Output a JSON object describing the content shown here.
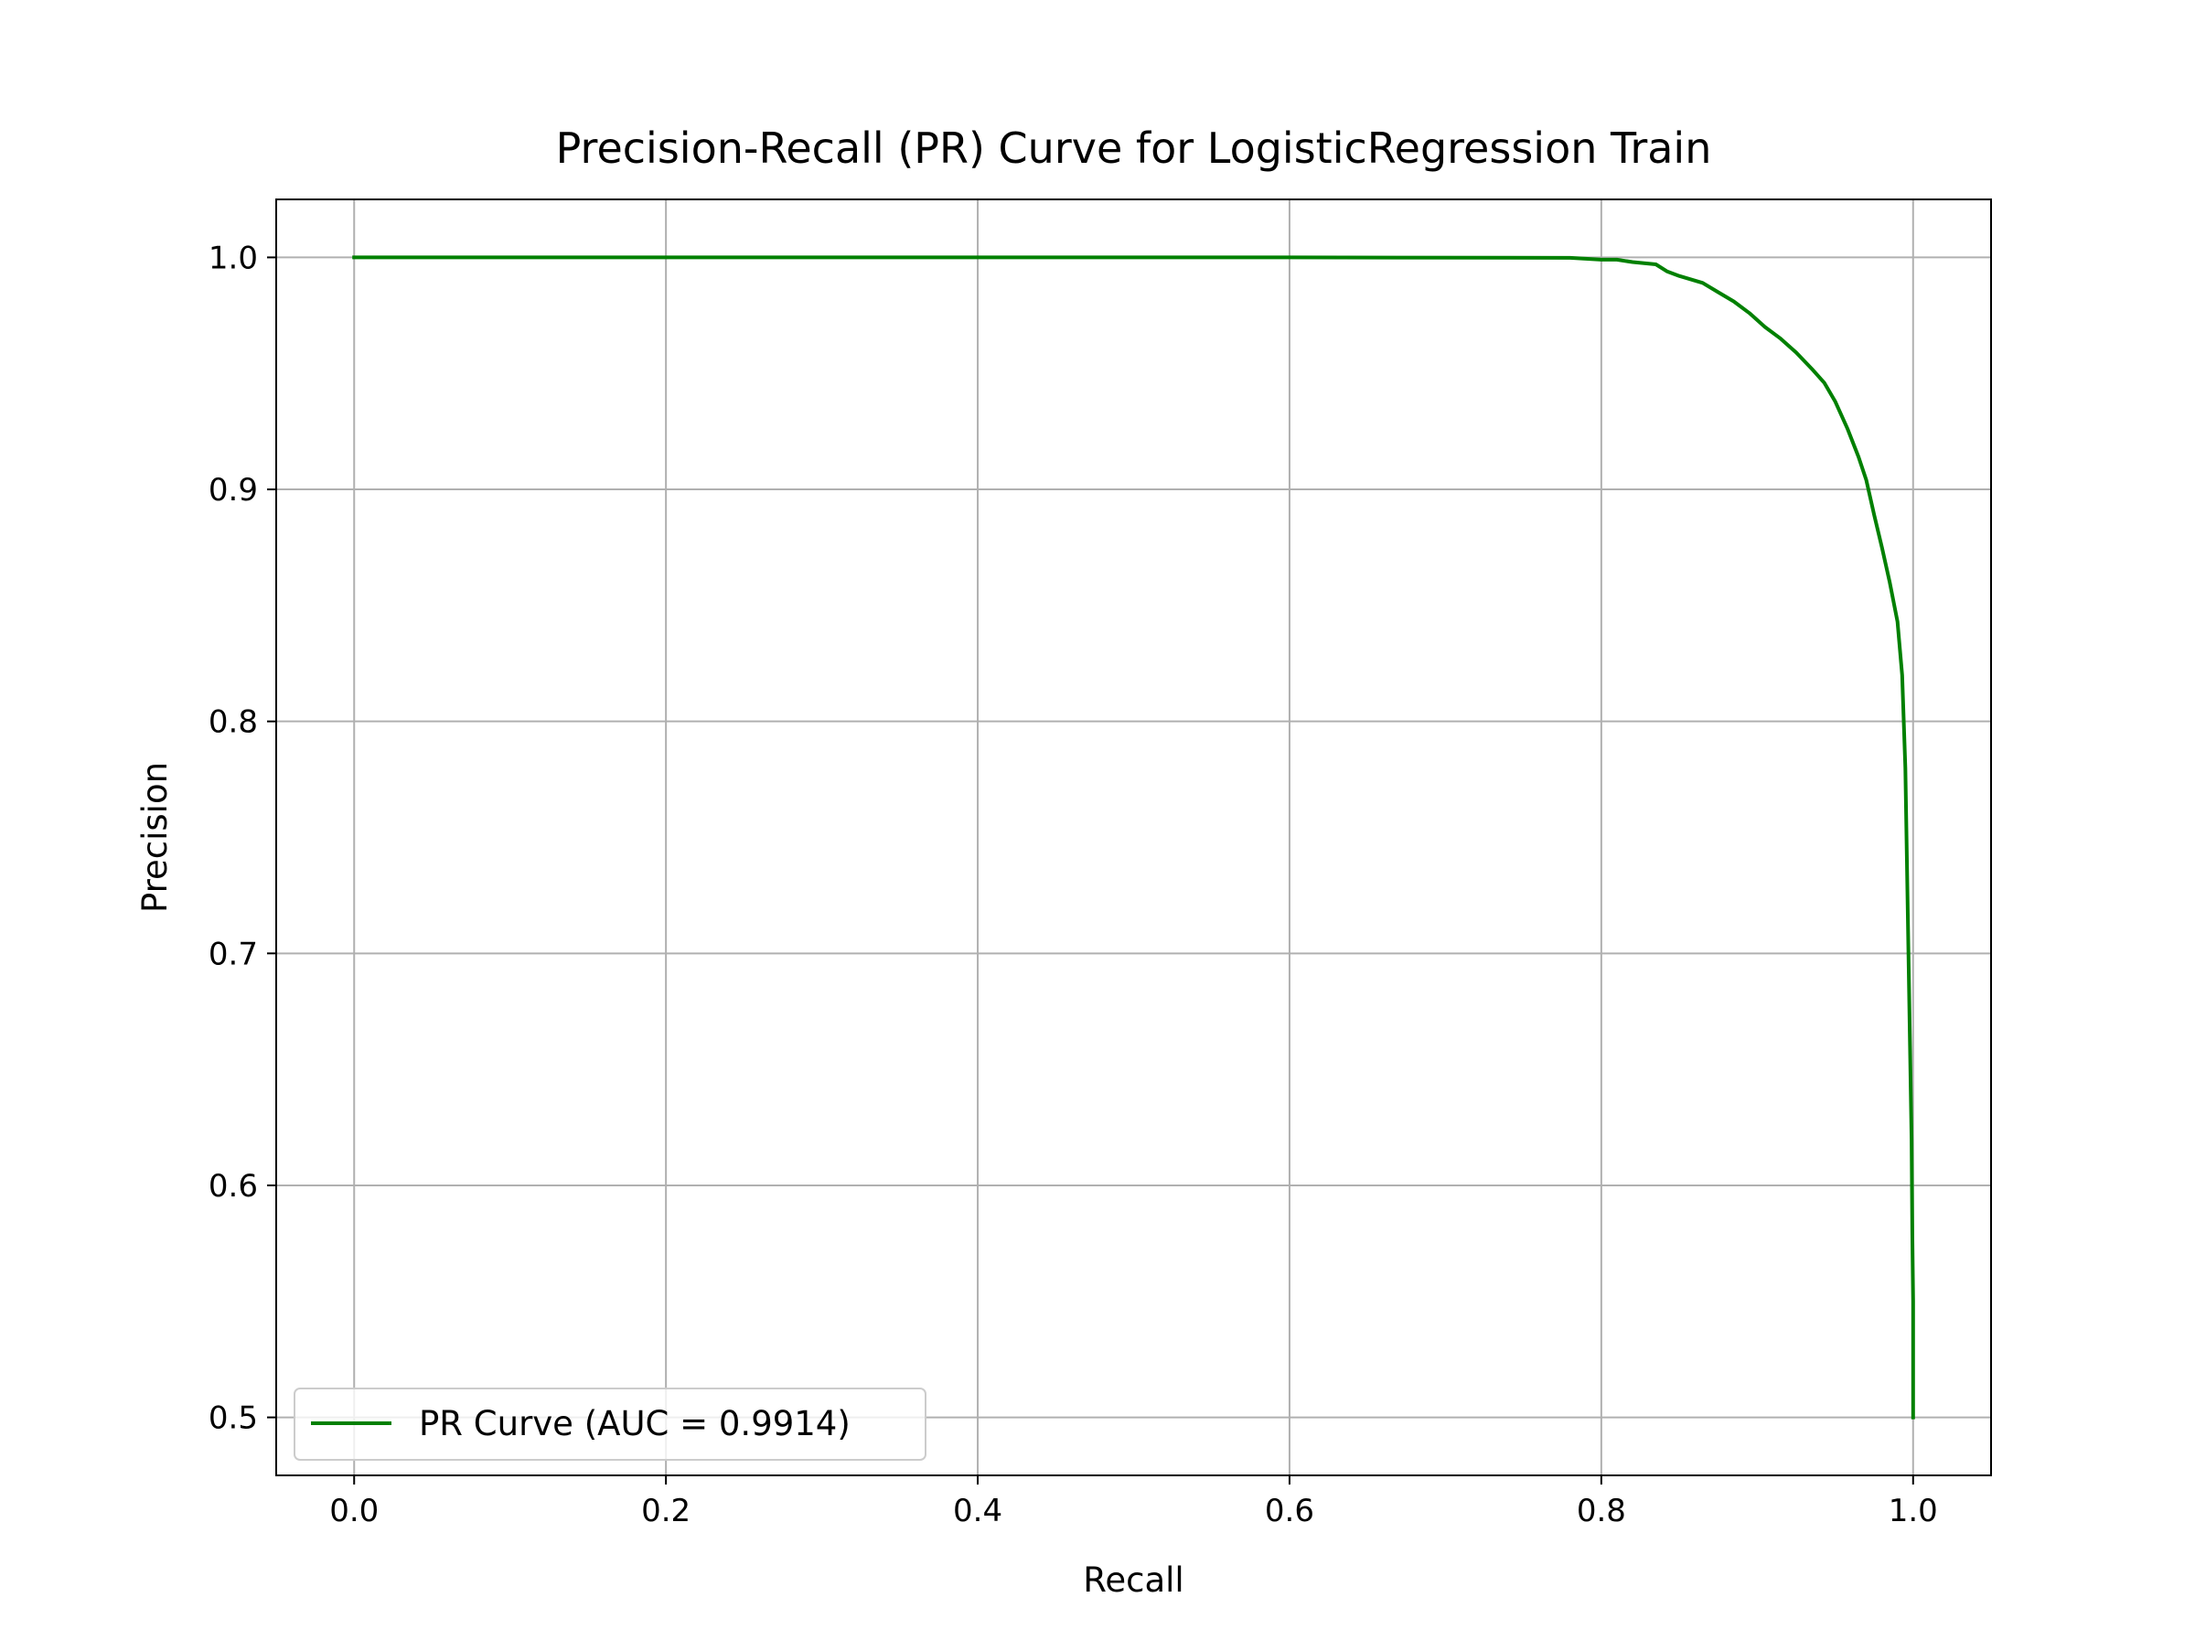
{
  "chart_data": {
    "type": "line",
    "title": "Precision-Recall (PR) Curve for LogisticRegression Train",
    "xlabel": "Recall",
    "ylabel": "Precision",
    "xlim": [
      -0.05,
      1.05
    ],
    "ylim": [
      0.475,
      1.025
    ],
    "x_ticks": [
      "0.0",
      "0.2",
      "0.4",
      "0.6",
      "0.8",
      "1.0"
    ],
    "y_ticks": [
      "0.5",
      "0.6",
      "0.7",
      "0.8",
      "0.9",
      "1.0"
    ],
    "grid": true,
    "legend_position": "lower-left",
    "series": [
      {
        "name": "PR Curve (AUC = 0.9914)",
        "color": "#008000",
        "x": [
          0.0,
          0.2,
          0.4,
          0.6,
          0.78,
          0.8,
          0.81,
          0.82,
          0.835,
          0.842,
          0.85,
          0.865,
          0.875,
          0.885,
          0.895,
          0.905,
          0.915,
          0.925,
          0.935,
          0.943,
          0.95,
          0.958,
          0.965,
          0.97,
          0.975,
          0.98,
          0.985,
          0.99,
          0.993,
          0.995,
          0.996,
          0.997,
          0.998,
          0.999,
          0.9995,
          1.0,
          1.0
        ],
        "y": [
          1.0,
          1.0,
          1.0,
          1.0,
          0.9998,
          0.999,
          0.999,
          0.998,
          0.997,
          0.994,
          0.992,
          0.989,
          0.985,
          0.981,
          0.976,
          0.97,
          0.965,
          0.959,
          0.952,
          0.946,
          0.938,
          0.926,
          0.914,
          0.904,
          0.889,
          0.875,
          0.86,
          0.843,
          0.82,
          0.78,
          0.74,
          0.7,
          0.66,
          0.62,
          0.58,
          0.55,
          0.5
        ]
      }
    ]
  }
}
